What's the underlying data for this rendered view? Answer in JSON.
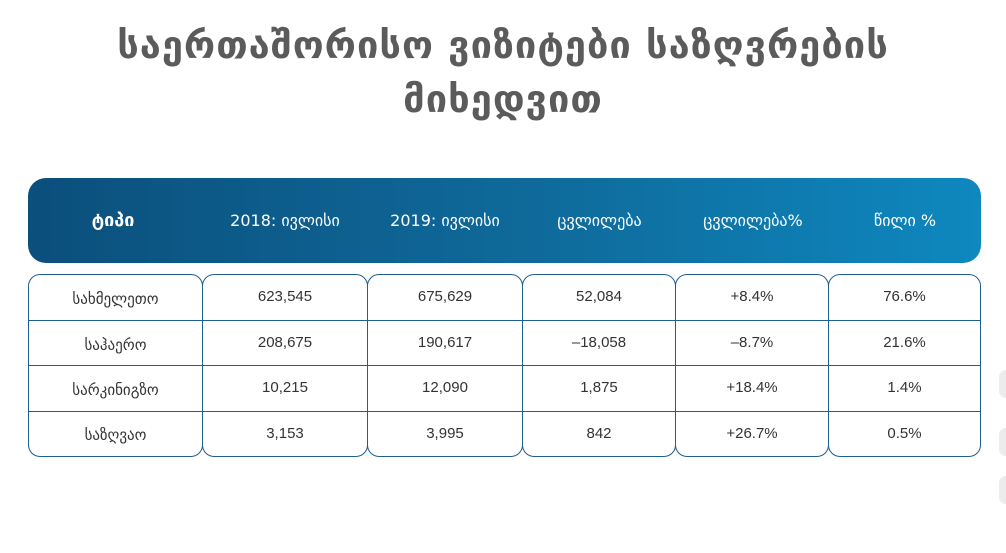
{
  "title": {
    "line1": "საერთაშორისო ვიზიტები საზღვრების",
    "line2": "მიხედვით"
  },
  "colors": {
    "header_start": "#0b4f7c",
    "header_end": "#0e88bf",
    "border": "#1f5f8f",
    "title": "#5b5b5b"
  },
  "table": {
    "headers": [
      "ტიპი",
      "2018: ივლისი",
      "2019: ივლისი",
      "ცვლილება",
      "ცვლილება%",
      "წილი %"
    ],
    "rows": [
      {
        "type": "სახმელეთო",
        "y2018": "623,545",
        "y2019": "675,629",
        "change": "52,084",
        "change_pct": "+8.4%",
        "share": "76.6%"
      },
      {
        "type": "საჰაერო",
        "y2018": "208,675",
        "y2019": "190,617",
        "change": "–18,058",
        "change_pct": "–8.7%",
        "share": "21.6%"
      },
      {
        "type": "სარკინიგზო",
        "y2018": "10,215",
        "y2019": "12,090",
        "change": "1,875",
        "change_pct": "+18.4%",
        "share": "1.4%"
      },
      {
        "type": "საზღვაო",
        "y2018": "3,153",
        "y2019": "3,995",
        "change": "842",
        "change_pct": "+26.7%",
        "share": "0.5%"
      }
    ]
  }
}
